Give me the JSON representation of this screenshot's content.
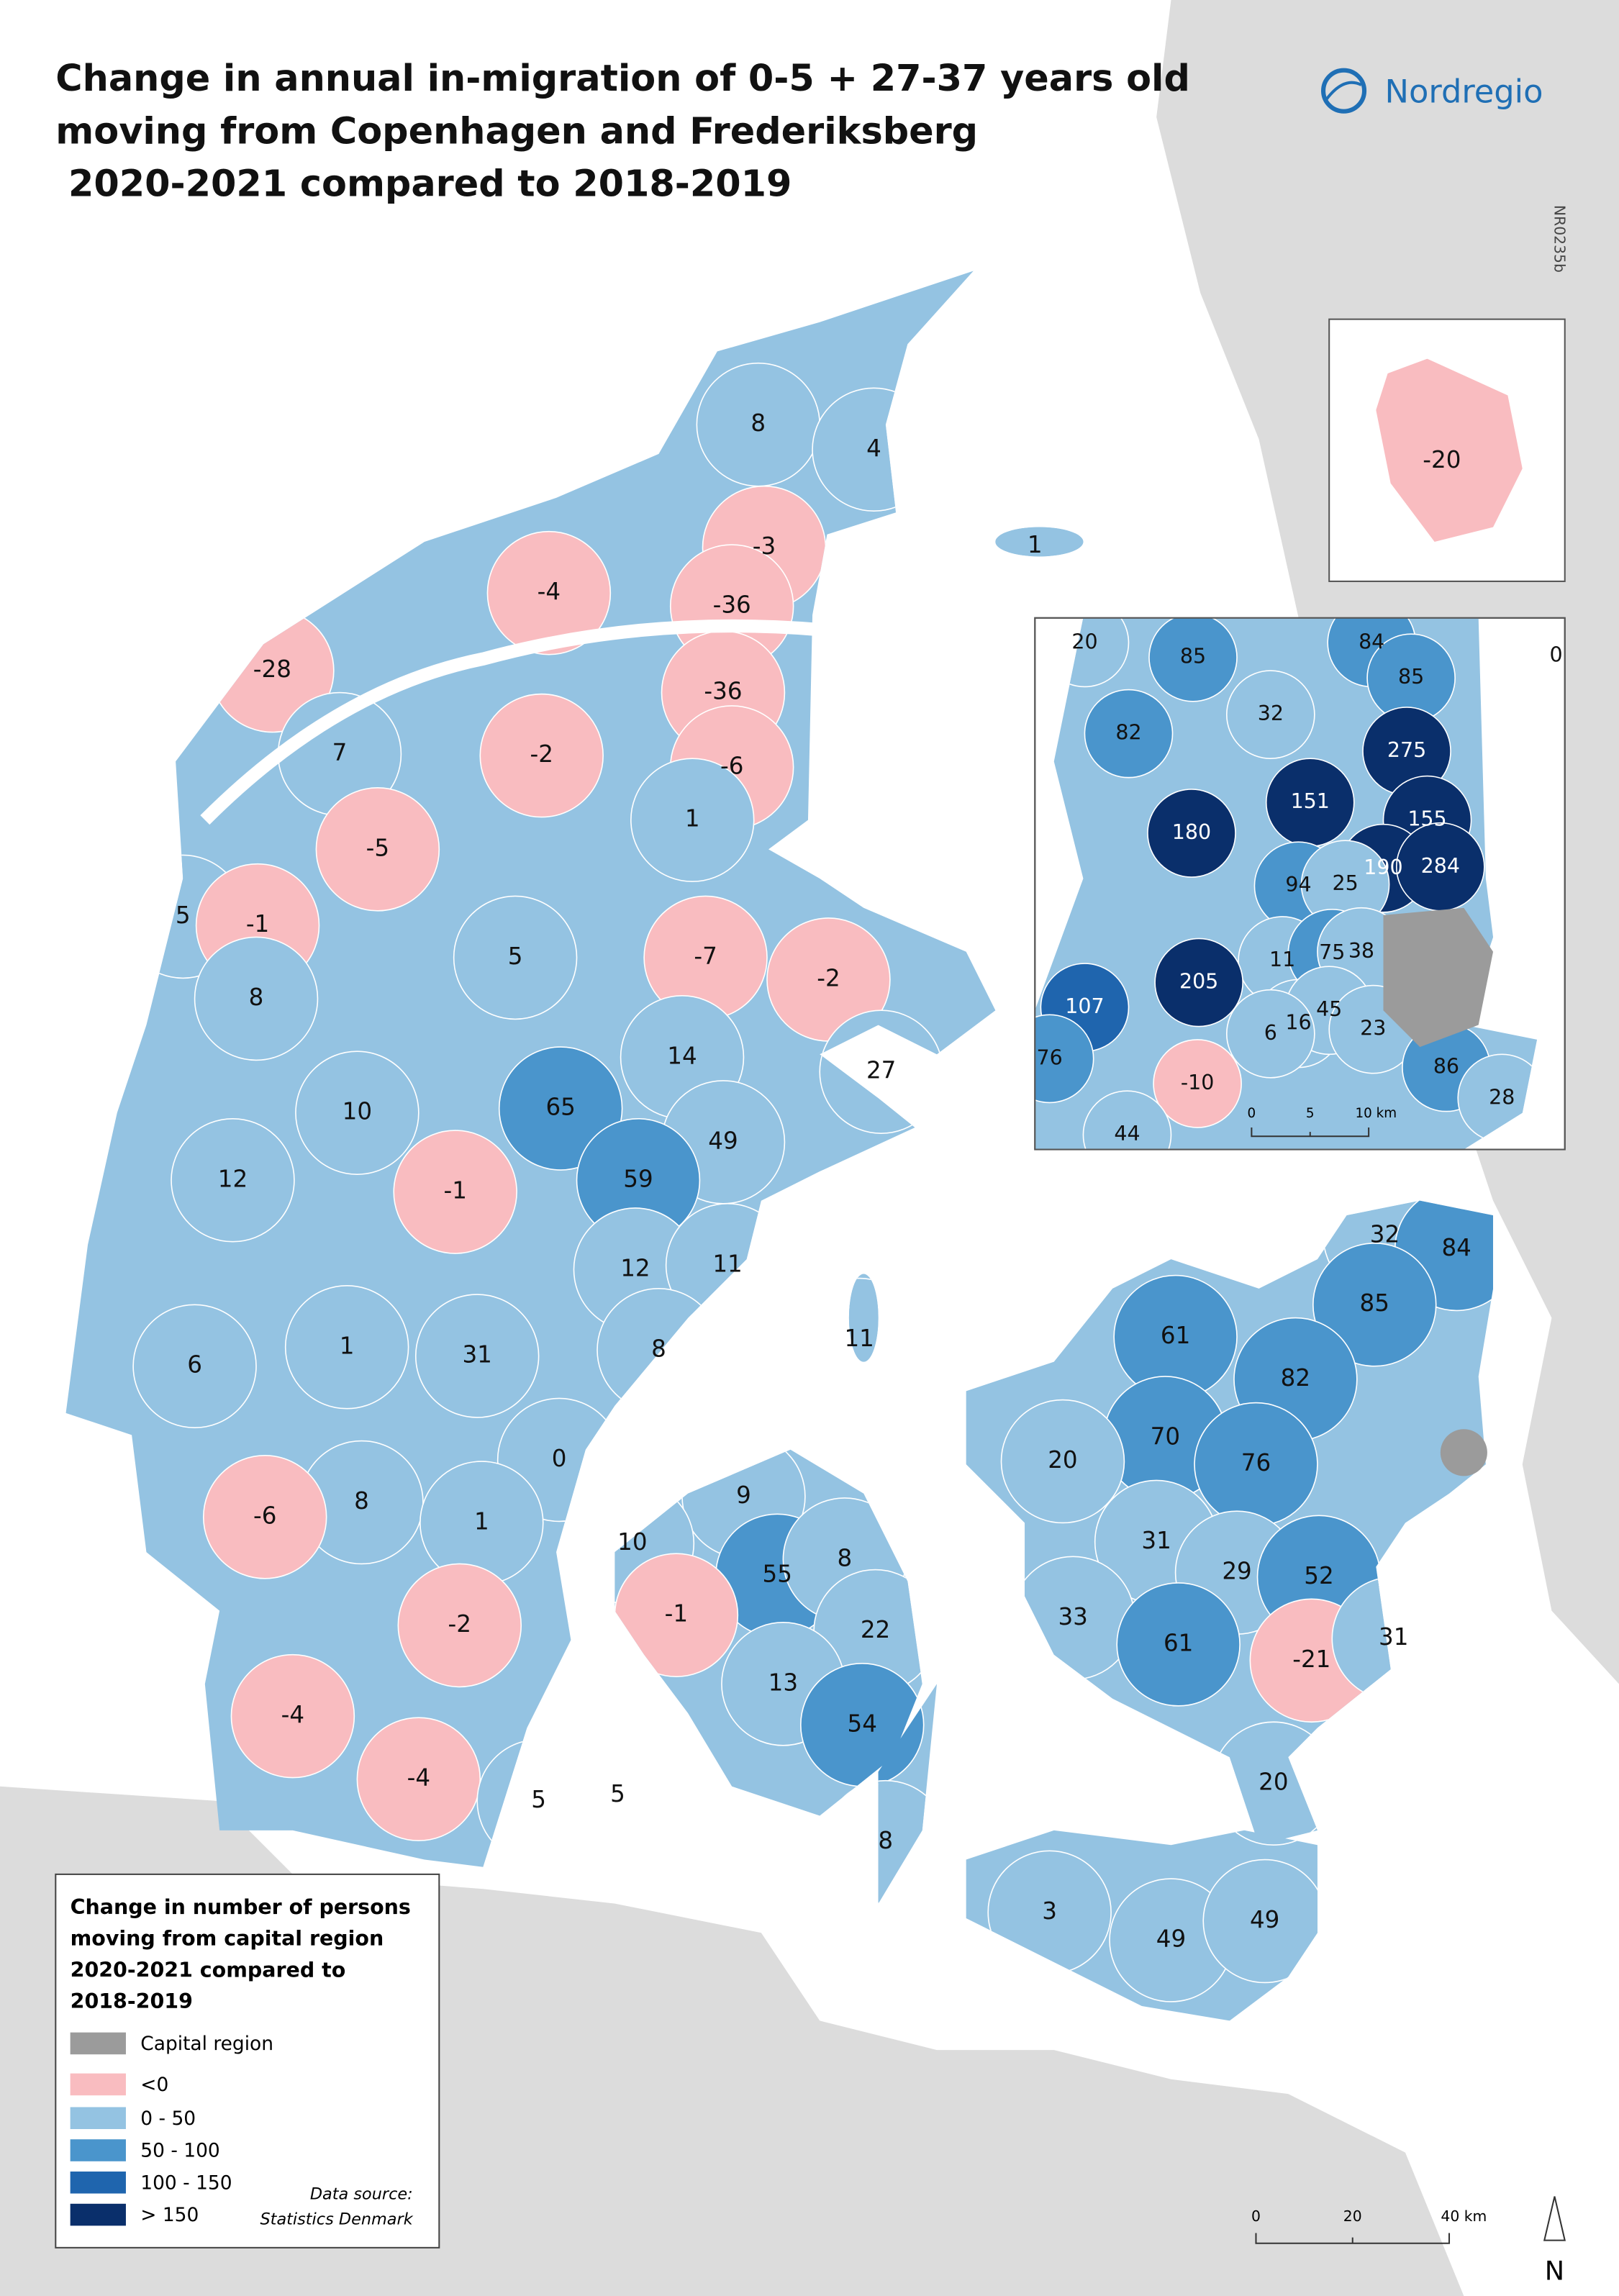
{
  "header": {
    "title": [
      "Change in annual in-migration of 0-5 + 27-37 years old",
      "moving from Copenhagen and Frederiksberg",
      " 2020-2021 compared to 2018-2019"
    ],
    "brand": "Nordregio",
    "code": "NR0235b"
  },
  "map": {
    "regions": [
      {
        "label": 8,
        "color": "#94c3e2"
      },
      {
        "label": 4,
        "color": "#94c3e2"
      },
      {
        "label": 1,
        "color": "#94c3e2"
      },
      {
        "label": -3,
        "color": "#f9bcc0"
      },
      {
        "label": -4,
        "color": "#f9bcc0"
      },
      {
        "label": -36,
        "color": "#f9bcc0"
      },
      {
        "label": -28,
        "color": "#f9bcc0"
      },
      {
        "label": -36,
        "color": "#f9bcc0"
      },
      {
        "label": 7,
        "color": "#94c3e2"
      },
      {
        "label": -2,
        "color": "#f9bcc0"
      },
      {
        "label": -6,
        "color": "#f9bcc0"
      },
      {
        "label": 1,
        "color": "#94c3e2"
      },
      {
        "label": -5,
        "color": "#f9bcc0"
      },
      {
        "label": 5,
        "color": "#94c3e2"
      },
      {
        "label": -1,
        "color": "#f9bcc0"
      },
      {
        "label": 5,
        "color": "#94c3e2"
      },
      {
        "label": -7,
        "color": "#f9bcc0"
      },
      {
        "label": -2,
        "color": "#f9bcc0"
      },
      {
        "label": 8,
        "color": "#94c3e2"
      },
      {
        "label": 14,
        "color": "#94c3e2"
      },
      {
        "label": 27,
        "color": "#94c3e2"
      },
      {
        "label": 10,
        "color": "#94c3e2"
      },
      {
        "label": 65,
        "color": "#4a95cc"
      },
      {
        "label": 49,
        "color": "#94c3e2"
      },
      {
        "label": 12,
        "color": "#94c3e2"
      },
      {
        "label": -1,
        "color": "#f9bcc0"
      },
      {
        "label": 59,
        "color": "#4a95cc"
      },
      {
        "label": 12,
        "color": "#94c3e2"
      },
      {
        "label": 11,
        "color": "#94c3e2"
      },
      {
        "label": 11,
        "color": "#94c3e2"
      },
      {
        "label": 8,
        "color": "#94c3e2"
      },
      {
        "label": 6,
        "color": "#94c3e2"
      },
      {
        "label": 1,
        "color": "#94c3e2"
      },
      {
        "label": 31,
        "color": "#94c3e2"
      },
      {
        "label": 0,
        "color": "#94c3e2"
      },
      {
        "label": 8,
        "color": "#94c3e2"
      },
      {
        "label": 1,
        "color": "#94c3e2"
      },
      {
        "label": -6,
        "color": "#f9bcc0"
      },
      {
        "label": 9,
        "color": "#94c3e2"
      },
      {
        "label": 10,
        "color": "#94c3e2"
      },
      {
        "label": 55,
        "color": "#4a95cc"
      },
      {
        "label": 8,
        "color": "#94c3e2"
      },
      {
        "label": -1,
        "color": "#f9bcc0"
      },
      {
        "label": -2,
        "color": "#f9bcc0"
      },
      {
        "label": 22,
        "color": "#94c3e2"
      },
      {
        "label": 13,
        "color": "#94c3e2"
      },
      {
        "label": -4,
        "color": "#f9bcc0"
      },
      {
        "label": 54,
        "color": "#4a95cc"
      },
      {
        "label": -4,
        "color": "#f9bcc0"
      },
      {
        "label": 5,
        "color": "#94c3e2"
      },
      {
        "label": 5,
        "color": "#94c3e2"
      },
      {
        "label": 8,
        "color": "#94c3e2"
      },
      {
        "label": 32,
        "color": "#94c3e2"
      },
      {
        "label": 84,
        "color": "#4a95cc"
      },
      {
        "label": 61,
        "color": "#4a95cc"
      },
      {
        "label": 85,
        "color": "#4a95cc"
      },
      {
        "label": 82,
        "color": "#4a95cc"
      },
      {
        "label": 70,
        "color": "#4a95cc"
      },
      {
        "label": 20,
        "color": "#94c3e2"
      },
      {
        "label": 76,
        "color": "#4a95cc"
      },
      {
        "label": 31,
        "color": "#94c3e2"
      },
      {
        "label": 29,
        "color": "#94c3e2"
      },
      {
        "label": 52,
        "color": "#4a95cc"
      },
      {
        "label": 33,
        "color": "#94c3e2"
      },
      {
        "label": 61,
        "color": "#4a95cc"
      },
      {
        "label": -21,
        "color": "#f9bcc0"
      },
      {
        "label": 31,
        "color": "#94c3e2"
      },
      {
        "label": 20,
        "color": "#94c3e2"
      },
      {
        "label": 3,
        "color": "#94c3e2"
      },
      {
        "label": 49,
        "color": "#94c3e2"
      },
      {
        "label": 49,
        "color": "#94c3e2"
      }
    ],
    "scale": [
      "0",
      "20",
      "40 km"
    ],
    "north": "N"
  },
  "bornholm": {
    "regions": [
      {
        "label": -20,
        "color": "#f9bcc0"
      }
    ]
  },
  "inset": {
    "regions": [
      {
        "label": 20,
        "color": "#94c3e2"
      },
      {
        "label": 85,
        "color": "#4a95cc"
      },
      {
        "label": 84,
        "color": "#4a95cc"
      },
      {
        "label": 0,
        "color": "#94c3e2"
      },
      {
        "label": 85,
        "color": "#4a95cc"
      },
      {
        "label": 82,
        "color": "#4a95cc"
      },
      {
        "label": 32,
        "color": "#94c3e2"
      },
      {
        "label": 275,
        "color": "#0a2f6b"
      },
      {
        "label": 151,
        "color": "#0a2f6b"
      },
      {
        "label": 155,
        "color": "#0a2f6b"
      },
      {
        "label": 180,
        "color": "#0a2f6b"
      },
      {
        "label": 190,
        "color": "#0a2f6b"
      },
      {
        "label": 284,
        "color": "#0a2f6b"
      },
      {
        "label": 94,
        "color": "#4a95cc"
      },
      {
        "label": 25,
        "color": "#94c3e2"
      },
      {
        "label": 11,
        "color": "#94c3e2"
      },
      {
        "label": 75,
        "color": "#4a95cc"
      },
      {
        "label": 38,
        "color": "#94c3e2"
      },
      {
        "label": 205,
        "color": "#0a2f6b"
      },
      {
        "label": 107,
        "color": "#1f65ae"
      },
      {
        "label": 16,
        "color": "#94c3e2"
      },
      {
        "label": 45,
        "color": "#94c3e2"
      },
      {
        "label": 6,
        "color": "#94c3e2"
      },
      {
        "label": 23,
        "color": "#94c3e2"
      },
      {
        "label": 76,
        "color": "#4a95cc"
      },
      {
        "label": -10,
        "color": "#f9bcc0"
      },
      {
        "label": 86,
        "color": "#4a95cc"
      },
      {
        "label": 28,
        "color": "#94c3e2"
      },
      {
        "label": 44,
        "color": "#94c3e2"
      }
    ],
    "scale": [
      "0",
      "5",
      "10 km"
    ]
  },
  "legend": {
    "title": [
      "Change in number of persons",
      "moving from capital region",
      "2020-2021 compared to",
      "2018-2019"
    ],
    "items": [
      {
        "label": "Capital region",
        "color": "#9b9b9b"
      },
      {
        "label": "<0",
        "color": "#f9bcc0"
      },
      {
        "label": "0 - 50",
        "color": "#94c3e2"
      },
      {
        "label": "50 - 100",
        "color": "#4a95cc"
      },
      {
        "label": "100 - 150",
        "color": "#1f65ae"
      },
      {
        "label": "> 150",
        "color": "#0a2f6b"
      }
    ],
    "source": [
      "Data source:",
      "Statistics Denmark"
    ]
  }
}
